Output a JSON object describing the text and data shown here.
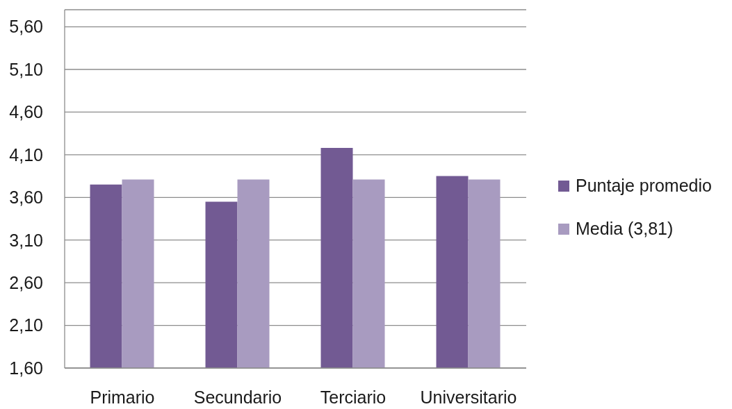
{
  "chart_data": {
    "type": "bar",
    "categories": [
      "Primario",
      "Secundario",
      "Terciario",
      "Universitario"
    ],
    "series": [
      {
        "name": "Puntaje promedio",
        "color": "#725a93",
        "values": [
          3.75,
          3.55,
          4.18,
          3.85
        ]
      },
      {
        "name": "Media (3,81)",
        "color": "#a89bc0",
        "values": [
          3.81,
          3.81,
          3.81,
          3.81
        ]
      }
    ],
    "ylim": [
      1.6,
      5.8
    ],
    "yticks": [
      {
        "value": 1.6,
        "label": "1,60"
      },
      {
        "value": 2.1,
        "label": "2,10"
      },
      {
        "value": 2.6,
        "label": "2,60"
      },
      {
        "value": 3.1,
        "label": "3,10"
      },
      {
        "value": 3.6,
        "label": "3,60"
      },
      {
        "value": 4.1,
        "label": "4,10"
      },
      {
        "value": 4.6,
        "label": "4,60"
      },
      {
        "value": 5.1,
        "label": "5,10"
      },
      {
        "value": 5.6,
        "label": "5,60"
      }
    ],
    "grid": "y",
    "legend": "right"
  }
}
